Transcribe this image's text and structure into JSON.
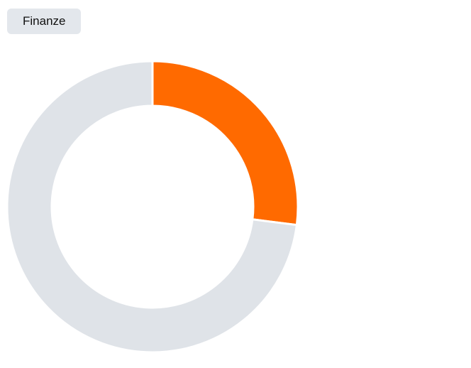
{
  "chart_data": {
    "type": "donut",
    "title": "Finanze",
    "categories": [
      null,
      null
    ],
    "values": [
      27,
      73
    ],
    "colors": [
      "#ff6a00",
      "#dfe3e8"
    ]
  }
}
